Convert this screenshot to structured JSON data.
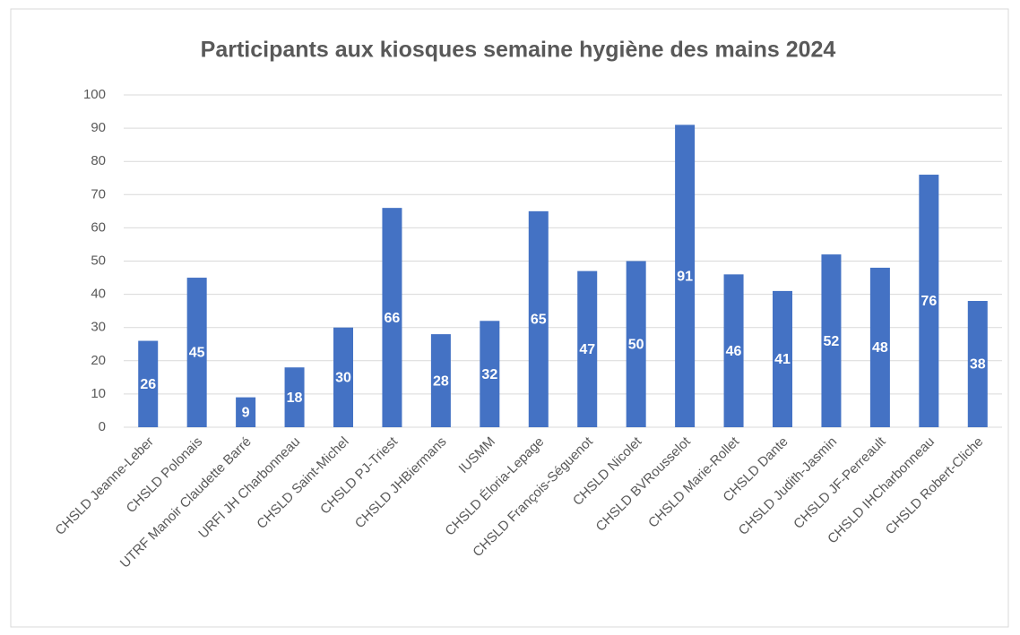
{
  "chart_data": {
    "type": "bar",
    "title": "Participants aux kiosques semaine hygiène des mains 2024",
    "categories": [
      "CHSLD Jeanne-Leber",
      "CHSLD Polonais",
      "UTRF Manoir Claudette Barré",
      "URFI JH Charbonneau",
      "CHSLD Saint-Michel",
      "CHSLD PJ-Triest",
      "CHSLD JHBiermans",
      "IUSMM",
      "CHSLD Éloria-Lepage",
      "CHSLD François-Séguenot",
      "CHSLD Nicolet",
      "CHSLD BVRousselot",
      "CHSLD Marie-Rollet",
      "CHSLD Dante",
      "CHSLD Judith-Jasmin",
      "CHSLD JF-Perreault",
      "CHSLD IHCharbonneau",
      "CHSLD Robert-Cliche"
    ],
    "values": [
      26,
      45,
      9,
      18,
      30,
      66,
      28,
      32,
      65,
      47,
      50,
      91,
      46,
      41,
      52,
      48,
      76,
      38
    ],
    "color": "#4472c4",
    "ylim": [
      0,
      100
    ],
    "yticks": [
      0,
      10,
      20,
      30,
      40,
      50,
      60,
      70,
      80,
      90,
      100
    ],
    "grid": true
  }
}
